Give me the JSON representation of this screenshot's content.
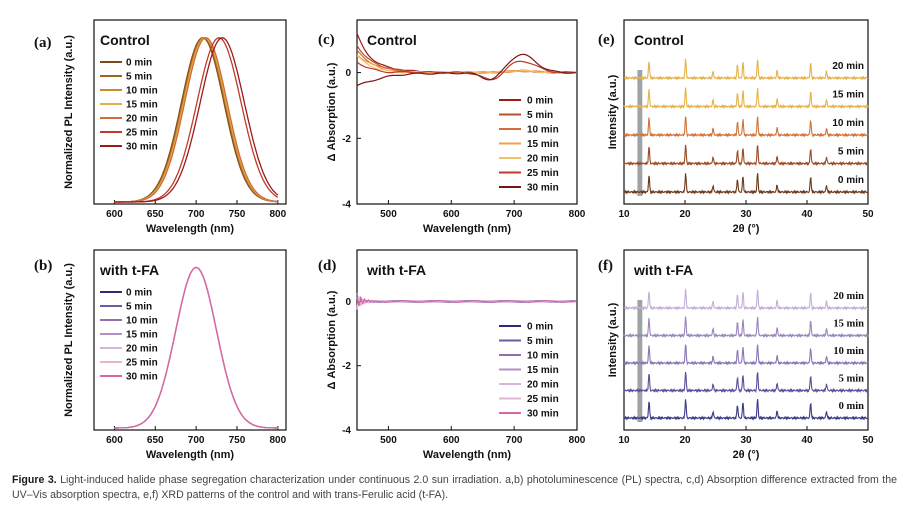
{
  "caption": {
    "label": "Figure 3.",
    "text": "Light-induced halide phase segregation characterization under continuous 2.0 sun irradiation. a,b) photoluminescence (PL) spectra, c,d) Absorption difference extracted from the UV–Vis absorption spectra, e,f) XRD patterns of the control and with trans-Ferulic acid (t-FA)."
  },
  "chart_data": [
    {
      "id": "a",
      "type": "line",
      "panel_label": "(a)",
      "title": "Control",
      "xlabel": "Wavelength (nm)",
      "ylabel": "Normalized PL Intensity (a.u.)",
      "xlim": [
        575,
        810
      ],
      "xticks": [
        600,
        650,
        700,
        750,
        800
      ],
      "ylim": [
        0,
        1.12
      ],
      "legend": "top-left",
      "series": [
        {
          "name": "0 min",
          "color": "#7a4a1c",
          "peak": 708,
          "width": 26
        },
        {
          "name": "5 min",
          "color": "#a0621e",
          "peak": 709,
          "width": 26
        },
        {
          "name": "10 min",
          "color": "#c98b2e",
          "peak": 710,
          "width": 26
        },
        {
          "name": "15 min",
          "color": "#e2b04a",
          "peak": 711,
          "width": 26
        },
        {
          "name": "20 min",
          "color": "#d46a3a",
          "peak": 712,
          "width": 26
        },
        {
          "name": "25 min",
          "color": "#c0392b",
          "peak": 728,
          "width": 27
        },
        {
          "name": "30 min",
          "color": "#9b1b1b",
          "peak": 732,
          "width": 27
        }
      ]
    },
    {
      "id": "b",
      "type": "line",
      "panel_label": "(b)",
      "title": "with t-FA",
      "xlabel": "Wavelength (nm)",
      "ylabel": "Normalized PL Intensity (a.u.)",
      "xlim": [
        575,
        810
      ],
      "xticks": [
        600,
        650,
        700,
        750,
        800
      ],
      "ylim": [
        0,
        1.12
      ],
      "legend": "top-left",
      "series": [
        {
          "name": "0 min",
          "color": "#2b2d7a",
          "peak": 700,
          "width": 25
        },
        {
          "name": "5 min",
          "color": "#6a5aa8",
          "peak": 700,
          "width": 25
        },
        {
          "name": "10 min",
          "color": "#8e6fb0",
          "peak": 700,
          "width": 25
        },
        {
          "name": "15 min",
          "color": "#b58fc6",
          "peak": 700,
          "width": 25
        },
        {
          "name": "20 min",
          "color": "#d6b6e0",
          "peak": 700,
          "width": 25
        },
        {
          "name": "25 min",
          "color": "#e7b3d3",
          "peak": 700,
          "width": 25
        },
        {
          "name": "30 min",
          "color": "#d9669f",
          "peak": 700,
          "width": 25
        }
      ]
    },
    {
      "id": "c",
      "type": "line",
      "panel_label": "(c)",
      "title": "Control",
      "xlabel": "Wavelength (nm)",
      "ylabel": "Δ Absorption (a.u.)",
      "xlim": [
        450,
        800
      ],
      "xticks": [
        500,
        600,
        700,
        800
      ],
      "ylim": [
        -4,
        1.6
      ],
      "yticks": [
        -4,
        -2,
        0
      ],
      "legend": "bottom-right",
      "series": [
        {
          "name": "0 min",
          "color": "#9b1b1b"
        },
        {
          "name": "5 min",
          "color": "#b5532b"
        },
        {
          "name": "10 min",
          "color": "#d66a3a"
        },
        {
          "name": "15 min",
          "color": "#e8a24a"
        },
        {
          "name": "20 min",
          "color": "#f0c06a"
        },
        {
          "name": "25 min",
          "color": "#c0392b"
        },
        {
          "name": "30 min",
          "color": "#7a1515"
        }
      ]
    },
    {
      "id": "d",
      "type": "line",
      "panel_label": "(d)",
      "title": "with t-FA",
      "xlabel": "Wavelength (nm)",
      "ylabel": "Δ Absorption (a.u.)",
      "xlim": [
        450,
        800
      ],
      "xticks": [
        500,
        600,
        700,
        800
      ],
      "ylim": [
        -4,
        1.6
      ],
      "yticks": [
        -4,
        -2,
        0
      ],
      "legend": "bottom-right",
      "series": [
        {
          "name": "0 min",
          "color": "#2b2d7a"
        },
        {
          "name": "5 min",
          "color": "#6a5aa8"
        },
        {
          "name": "10 min",
          "color": "#8e6fb0"
        },
        {
          "name": "15 min",
          "color": "#b58fc6"
        },
        {
          "name": "20 min",
          "color": "#d6b6e0"
        },
        {
          "name": "25 min",
          "color": "#e7b3d3"
        },
        {
          "name": "30 min",
          "color": "#d9669f"
        }
      ]
    },
    {
      "id": "e",
      "type": "line",
      "panel_label": "(e)",
      "title": "Control",
      "xlabel": "2θ (°)",
      "ylabel": "Intensity (a.u.)",
      "xlim": [
        10,
        50
      ],
      "xticks": [
        10,
        20,
        30,
        40,
        50
      ],
      "highlight_2theta": [
        12.2,
        13.0
      ],
      "peaks_2theta": [
        14.1,
        20.1,
        24.6,
        28.6,
        29.5,
        31.9,
        35.1,
        40.6,
        43.2
      ],
      "series": [
        {
          "name": "0 min",
          "color": "#6b3a1c"
        },
        {
          "name": "5 min",
          "color": "#9a4a24"
        },
        {
          "name": "10 min",
          "color": "#d0743a"
        },
        {
          "name": "15 min",
          "color": "#e6b24a"
        },
        {
          "name": "20 min",
          "color": "#e6b24a"
        }
      ],
      "labels": [
        "0 min",
        "5 min",
        "10 min",
        "15 min",
        "20 min"
      ]
    },
    {
      "id": "f",
      "type": "line",
      "panel_label": "(f)",
      "title": "with t-FA",
      "xlabel": "2θ (°)",
      "ylabel": "Intensity (a.u.)",
      "xlim": [
        10,
        50
      ],
      "xticks": [
        10,
        20,
        30,
        40,
        50
      ],
      "highlight_2theta": [
        12.2,
        13.0
      ],
      "peaks_2theta": [
        14.1,
        20.1,
        24.6,
        28.6,
        29.5,
        31.9,
        35.1,
        40.6,
        43.2
      ],
      "series": [
        {
          "name": "0 min",
          "color": "#3b3a86"
        },
        {
          "name": "5 min",
          "color": "#5b4f99"
        },
        {
          "name": "10 min",
          "color": "#8a76b3"
        },
        {
          "name": "15 min",
          "color": "#9a86bd"
        },
        {
          "name": "20 min",
          "color": "#c3b0d8"
        }
      ],
      "labels": [
        "0 min",
        "5 min",
        "10 min",
        "15 min",
        "20 min"
      ]
    }
  ]
}
